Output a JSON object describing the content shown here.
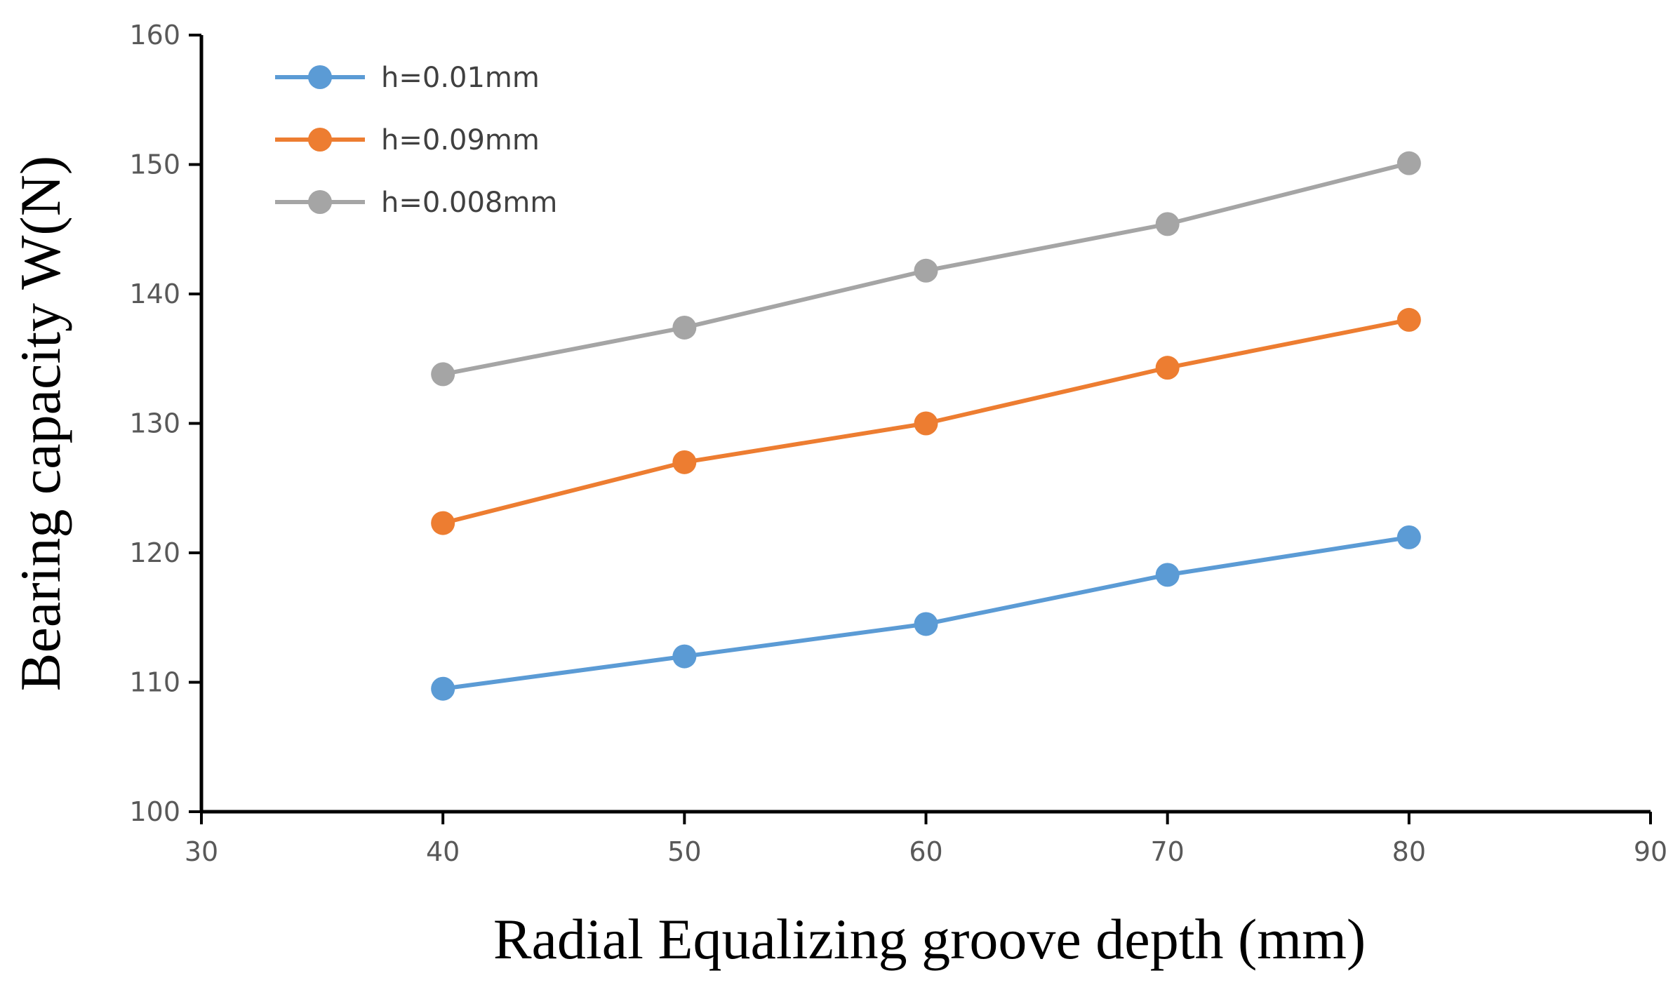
{
  "chart_data": {
    "type": "line",
    "title": "",
    "xlabel": "Radial Equalizing groove depth (mm)",
    "ylabel": "Bearing capacity W(N)",
    "xlim": [
      30,
      90
    ],
    "ylim": [
      100,
      160
    ],
    "xticks": [
      30,
      40,
      50,
      60,
      70,
      80,
      90
    ],
    "yticks": [
      100,
      110,
      120,
      130,
      140,
      150,
      160
    ],
    "x": [
      40,
      50,
      60,
      70,
      80
    ],
    "grid": false,
    "legend_position": "top-left",
    "series": [
      {
        "name": "h=0.01mm",
        "color": "#5B9BD5",
        "values": [
          109.5,
          112.0,
          114.5,
          118.3,
          121.2
        ]
      },
      {
        "name": "h=0.09mm",
        "color": "#ED7D31",
        "values": [
          122.3,
          127.0,
          130.0,
          134.3,
          138.0
        ]
      },
      {
        "name": "h=0.008mm",
        "color": "#A5A5A5",
        "values": [
          133.8,
          137.4,
          141.8,
          145.4,
          150.1
        ]
      }
    ]
  }
}
